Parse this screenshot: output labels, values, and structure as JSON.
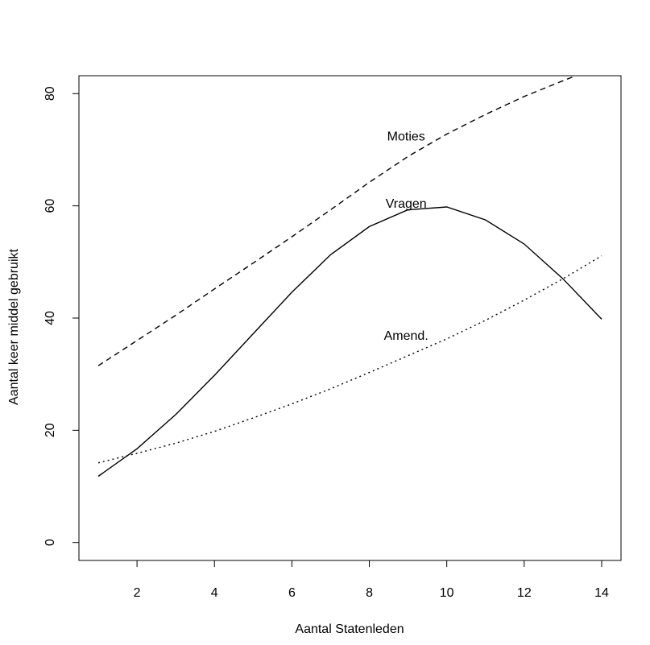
{
  "chart_data": {
    "type": "line",
    "title": "",
    "xlabel": "Aantal Statenleden",
    "ylabel": "Aantal keer middel gebruikt",
    "xlim": [
      0.5,
      14.5
    ],
    "ylim": [
      -3.2,
      83.2
    ],
    "xticks": [
      2,
      4,
      6,
      8,
      10,
      12,
      14
    ],
    "yticks": [
      0,
      20,
      40,
      60,
      80
    ],
    "grid": false,
    "legend": "none",
    "x": [
      1,
      2,
      3,
      4,
      5,
      6,
      7,
      8,
      9,
      10,
      11,
      12,
      13,
      14
    ],
    "series": [
      {
        "name": "Moties",
        "style": "dashed",
        "values": [
          31.5,
          36.0,
          40.5,
          45.2,
          49.8,
          54.5,
          59.3,
          64.2,
          68.8,
          72.8,
          76.3,
          79.5,
          82.3,
          85.0
        ],
        "label_at": [
          8.95,
          72.5
        ]
      },
      {
        "name": "Vragen",
        "style": "solid",
        "values": [
          11.8,
          16.7,
          22.8,
          29.8,
          37.2,
          44.6,
          51.3,
          56.3,
          59.3,
          59.8,
          57.5,
          53.2,
          47.0,
          39.8
        ],
        "label_at": [
          8.95,
          60.5
        ]
      },
      {
        "name": "Amend.",
        "style": "dotted",
        "values": [
          14.2,
          15.9,
          17.7,
          19.8,
          22.2,
          24.7,
          27.4,
          30.3,
          33.3,
          36.3,
          39.6,
          43.2,
          47.0,
          51.1
        ],
        "label_at": [
          8.95,
          37.0
        ]
      }
    ]
  }
}
